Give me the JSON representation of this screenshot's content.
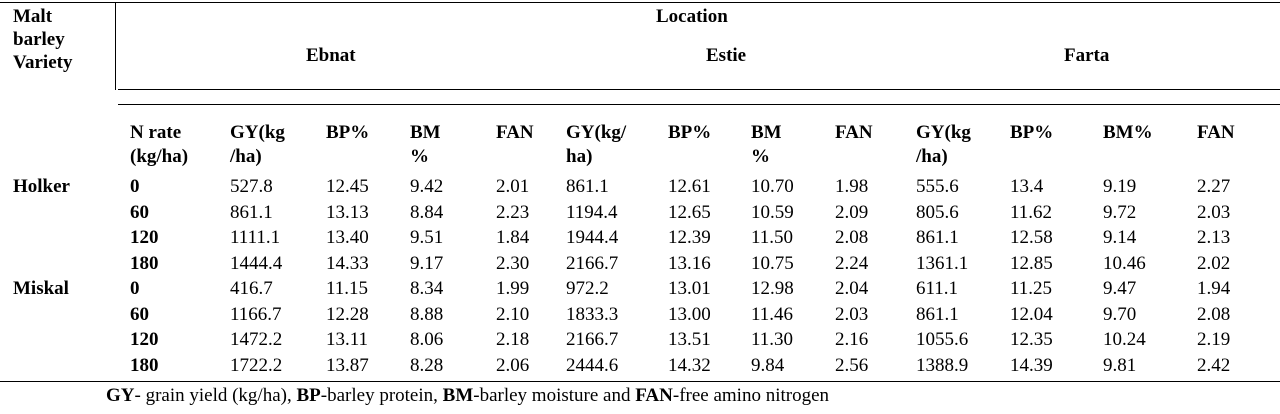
{
  "header": {
    "variety_label_lines": [
      "Malt",
      "barley",
      "Variety"
    ],
    "location_label": "Location",
    "locations": [
      "Ebnat",
      "Estie",
      "Farta"
    ],
    "n_rate_lines": [
      "N rate",
      "(kg/ha)"
    ],
    "columns": [
      [
        "GY(kg",
        "/ha)"
      ],
      [
        "BP%"
      ],
      [
        "BM",
        "%"
      ],
      [
        "FAN"
      ],
      [
        "GY(kg/",
        "ha)"
      ],
      [
        "BP%"
      ],
      [
        "BM",
        "%"
      ],
      [
        "FAN"
      ],
      [
        "GY(kg",
        "/ha)"
      ],
      [
        "BP%"
      ],
      [
        "BM%"
      ],
      [
        "FAN"
      ]
    ]
  },
  "rows": [
    {
      "variety": "Holker",
      "n": "0",
      "values": [
        "527.8",
        "12.45",
        "9.42",
        "2.01",
        "861.1",
        "12.61",
        "10.70",
        "1.98",
        "555.6",
        "13.4",
        "9.19",
        "2.27"
      ]
    },
    {
      "variety": "",
      "n": "60",
      "values": [
        "861.1",
        "13.13",
        "8.84",
        "2.23",
        "1194.4",
        "12.65",
        "10.59",
        "2.09",
        "805.6",
        "11.62",
        "9.72",
        "2.03"
      ]
    },
    {
      "variety": "",
      "n": "120",
      "values": [
        "1111.1",
        "13.40",
        "9.51",
        "1.84",
        "1944.4",
        "12.39",
        "11.50",
        "2.08",
        "861.1",
        "12.58",
        "9.14",
        "2.13"
      ]
    },
    {
      "variety": "",
      "n": "180",
      "values": [
        "1444.4",
        "14.33",
        "9.17",
        "2.30",
        "2166.7",
        "13.16",
        "10.75",
        "2.24",
        "1361.1",
        "12.85",
        "10.46",
        "2.02"
      ]
    },
    {
      "variety": "Miskal",
      "n": "0",
      "values": [
        "416.7",
        "11.15",
        "8.34",
        "1.99",
        "972.2",
        "13.01",
        "12.98",
        "2.04",
        "611.1",
        "11.25",
        "9.47",
        "1.94"
      ]
    },
    {
      "variety": "",
      "n": "60",
      "values": [
        "1166.7",
        "12.28",
        "8.88",
        "2.10",
        "1833.3",
        "13.00",
        "11.46",
        "2.03",
        "861.1",
        "12.04",
        "9.70",
        "2.08"
      ]
    },
    {
      "variety": "",
      "n": "120",
      "values": [
        "1472.2",
        "13.11",
        "8.06",
        "2.18",
        "2166.7",
        "13.51",
        "11.30",
        "2.16",
        "1055.6",
        "12.35",
        "10.24",
        "2.19"
      ]
    },
    {
      "variety": "",
      "n": "180",
      "values": [
        "1722.2",
        "13.87",
        "8.28",
        "2.06",
        "2444.6",
        "14.32",
        "9.84",
        "2.56",
        "1388.9",
        "14.39",
        "9.81",
        "2.42"
      ]
    }
  ],
  "footnote": [
    {
      "text": "GY",
      "bold": true
    },
    {
      "text": "- grain yield (kg/ha), ",
      "bold": false
    },
    {
      "text": "BP",
      "bold": true
    },
    {
      "text": "-barley protein, ",
      "bold": false
    },
    {
      "text": "BM",
      "bold": true
    },
    {
      "text": "-barley moisture and ",
      "bold": false
    },
    {
      "text": "FAN",
      "bold": true
    },
    {
      "text": "-free amino nitrogen",
      "bold": false
    }
  ]
}
